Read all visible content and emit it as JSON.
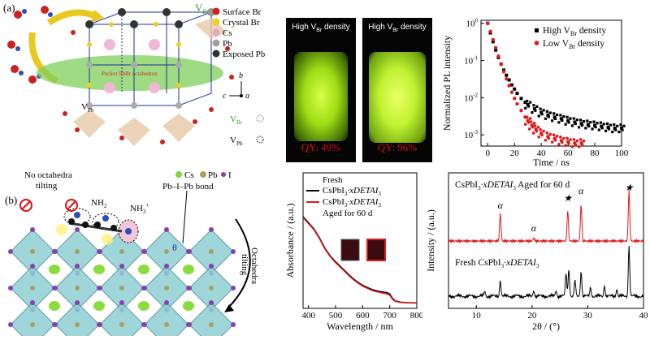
{
  "panel_a": {
    "label": "(a)",
    "vbr_top": "V",
    "vbr_top_sub": "Br",
    "legend": [
      {
        "text": "Surface Br",
        "color": "#d11f1f"
      },
      {
        "text": "Crystal Br",
        "color": "#e7d321"
      },
      {
        "text": "Cs",
        "color": "#e6a6c6"
      },
      {
        "text": "Pb",
        "color": "#a0a0a0"
      },
      {
        "text": "Exposed Pb",
        "color": "#333333"
      }
    ],
    "octahedron_text": "Perfect PbBr octahedron",
    "vpb_label": "V",
    "vpb_sub": "Pb",
    "axes": {
      "b": "b",
      "c": "c",
      "a": "a"
    },
    "vbr_key": "V",
    "vbr_key_sub": "Br",
    "vpb_key": "V",
    "vpb_key_sub": "Pb"
  },
  "photos": [
    {
      "caption_main": "High V",
      "caption_sub": "Br",
      "caption_tail": " density",
      "qy": "QY: 49%"
    },
    {
      "caption_main": "High V",
      "caption_sub": "Br",
      "caption_tail": " density",
      "qy": "QY: 96%"
    }
  ],
  "pl_chart": {
    "chart_data": {
      "type": "scatter",
      "xlabel": "Time / ns",
      "ylabel": "Normalized PL intensity",
      "xlim": [
        -5,
        100
      ],
      "ylim": [
        0.0005,
        1.2
      ],
      "yscale": "log",
      "xticks": [
        0,
        20,
        40,
        60,
        80,
        100
      ],
      "yticks": [
        "10^0",
        "10^-1",
        "10^-2",
        "10^-3"
      ],
      "legend": [
        "High V_Br density",
        "Low  V_Br density"
      ],
      "series": [
        {
          "name": "High V_Br density",
          "color": "#000000",
          "x": [
            0,
            2,
            4,
            6,
            8,
            10,
            12,
            14,
            16,
            18,
            20,
            22,
            25,
            28,
            30,
            35,
            40,
            45,
            50,
            55,
            60,
            65,
            70,
            75,
            80,
            85,
            90,
            95,
            100
          ],
          "y": [
            1.0,
            0.55,
            0.32,
            0.19,
            0.12,
            0.08,
            0.055,
            0.04,
            0.03,
            0.022,
            0.017,
            0.013,
            0.0095,
            0.0075,
            0.0065,
            0.005,
            0.004,
            0.0034,
            0.003,
            0.0027,
            0.0024,
            0.0022,
            0.002,
            0.0019,
            0.0018,
            0.0017,
            0.0016,
            0.0015,
            0.0015
          ]
        },
        {
          "name": "Low  V_Br density",
          "color": "#e01a1a",
          "x": [
            0,
            2,
            4,
            6,
            8,
            10,
            12,
            14,
            16,
            18,
            20,
            22,
            25,
            28,
            30,
            33,
            36,
            40,
            45,
            50,
            55,
            60,
            65,
            70
          ],
          "y": [
            1.0,
            0.6,
            0.36,
            0.22,
            0.13,
            0.08,
            0.05,
            0.032,
            0.021,
            0.014,
            0.0095,
            0.0068,
            0.0045,
            0.003,
            0.0024,
            0.0018,
            0.0014,
            0.0011,
            0.0009,
            0.0008,
            0.0007,
            0.00065,
            0.0006,
            0.0006
          ]
        }
      ]
    }
  },
  "panel_b": {
    "label": "(b)",
    "no_tilting": "No octahedra",
    "no_tilting2": "tilting",
    "legend": [
      {
        "text": "Cs",
        "color": "#7fd63a"
      },
      {
        "text": "Pb",
        "color": "#a8a060"
      },
      {
        "text": "I",
        "color": "#8a3fb0"
      }
    ],
    "nh2": "NH",
    "nh2_sub": "2",
    "nh3": "NH",
    "nh3_sub": "3",
    "nh3_sup": "+",
    "pb_i_pb": "Pb–I–Pb bond",
    "octa_tilt1": "Octahedra",
    "octa_tilt2": "tilting",
    "theta": "θ"
  },
  "abs_chart": {
    "chart_data": {
      "type": "line",
      "xlabel": "Wavelength / nm",
      "ylabel": "Absorbance / (a.u.)",
      "xlim": [
        380,
        800
      ],
      "xticks": [
        400,
        500,
        600,
        700,
        800
      ],
      "legend": [
        "Fresh CsPbI3·xDETAI3",
        "CsPbI3·xDETAI3 Aged for 60 d"
      ],
      "legend_text": {
        "fresh1": "Fresh",
        "fresh2": "CsPbI",
        "fresh2_sub": "3",
        "fresh2_tail": "·xDETAI",
        "fresh2_sub2": "3",
        "aged1": "CsPbI",
        "aged1_sub": "3",
        "aged1_tail": "·xDETAI",
        "aged1_sub2": "3",
        "aged2": "Aged for 60 d"
      },
      "series": [
        {
          "name": "Fresh",
          "color": "#000000",
          "x": [
            380,
            400,
            420,
            440,
            460,
            480,
            500,
            520,
            540,
            560,
            580,
            600,
            620,
            640,
            660,
            680,
            690,
            700,
            710,
            720,
            740,
            760,
            780,
            800
          ],
          "y": [
            1.0,
            0.93,
            0.86,
            0.76,
            0.64,
            0.55,
            0.48,
            0.42,
            0.36,
            0.3,
            0.25,
            0.21,
            0.18,
            0.155,
            0.14,
            0.13,
            0.125,
            0.11,
            0.06,
            0.03,
            0.015,
            0.01,
            0.008,
            0.006
          ]
        },
        {
          "name": "Aged for 60 d",
          "color": "#e01a1a",
          "x": [
            380,
            400,
            420,
            440,
            460,
            480,
            500,
            520,
            540,
            560,
            580,
            600,
            620,
            640,
            660,
            680,
            690,
            700,
            710,
            720,
            740,
            760,
            780,
            800
          ],
          "y": [
            0.99,
            0.92,
            0.85,
            0.75,
            0.63,
            0.54,
            0.47,
            0.41,
            0.35,
            0.29,
            0.24,
            0.2,
            0.17,
            0.145,
            0.13,
            0.115,
            0.108,
            0.095,
            0.05,
            0.025,
            0.012,
            0.008,
            0.006,
            0.005
          ]
        }
      ]
    }
  },
  "xrd_chart": {
    "chart_data": {
      "type": "line",
      "xlabel": "2θ / (°)",
      "ylabel": "Intensity / (a.u.)",
      "xlim": [
        5,
        40
      ],
      "xticks": [
        10,
        20,
        30,
        40
      ],
      "annotations": [
        "α",
        "α",
        "★",
        "α",
        "★"
      ],
      "series": [
        {
          "name": "CsPbI3·xDETAI3 Aged for 60 d",
          "color": "#e01a1a",
          "peaks": [
            [
              14.3,
              0.55
            ],
            [
              20.3,
              0.06
            ],
            [
              26.4,
              0.6
            ],
            [
              28.8,
              0.72
            ],
            [
              37.4,
              1.0
            ]
          ]
        },
        {
          "name": "Fresh CsPbI3·xDETAI3",
          "color": "#000000",
          "peaks": [
            [
              11.5,
              0.1
            ],
            [
              14.3,
              0.32
            ],
            [
              20.3,
              0.12
            ],
            [
              24.3,
              0.12
            ],
            [
              26.1,
              0.45
            ],
            [
              26.6,
              0.55
            ],
            [
              27.7,
              0.3
            ],
            [
              28.8,
              0.5
            ],
            [
              30.5,
              0.18
            ],
            [
              33.0,
              0.22
            ],
            [
              35.2,
              0.15
            ],
            [
              37.4,
              1.0
            ]
          ]
        }
      ],
      "label_aged_1": "CsPbI",
      "label_aged_sub": "3",
      "label_aged_tail": "·xDETAI",
      "label_aged_sub2": "3",
      "label_aged_end": " Aged for 60 d",
      "label_fresh_1": "Fresh CsPbI",
      "label_fresh_sub": "3",
      "label_fresh_tail": "·xDETAI",
      "label_fresh_sub2": "3"
    }
  }
}
